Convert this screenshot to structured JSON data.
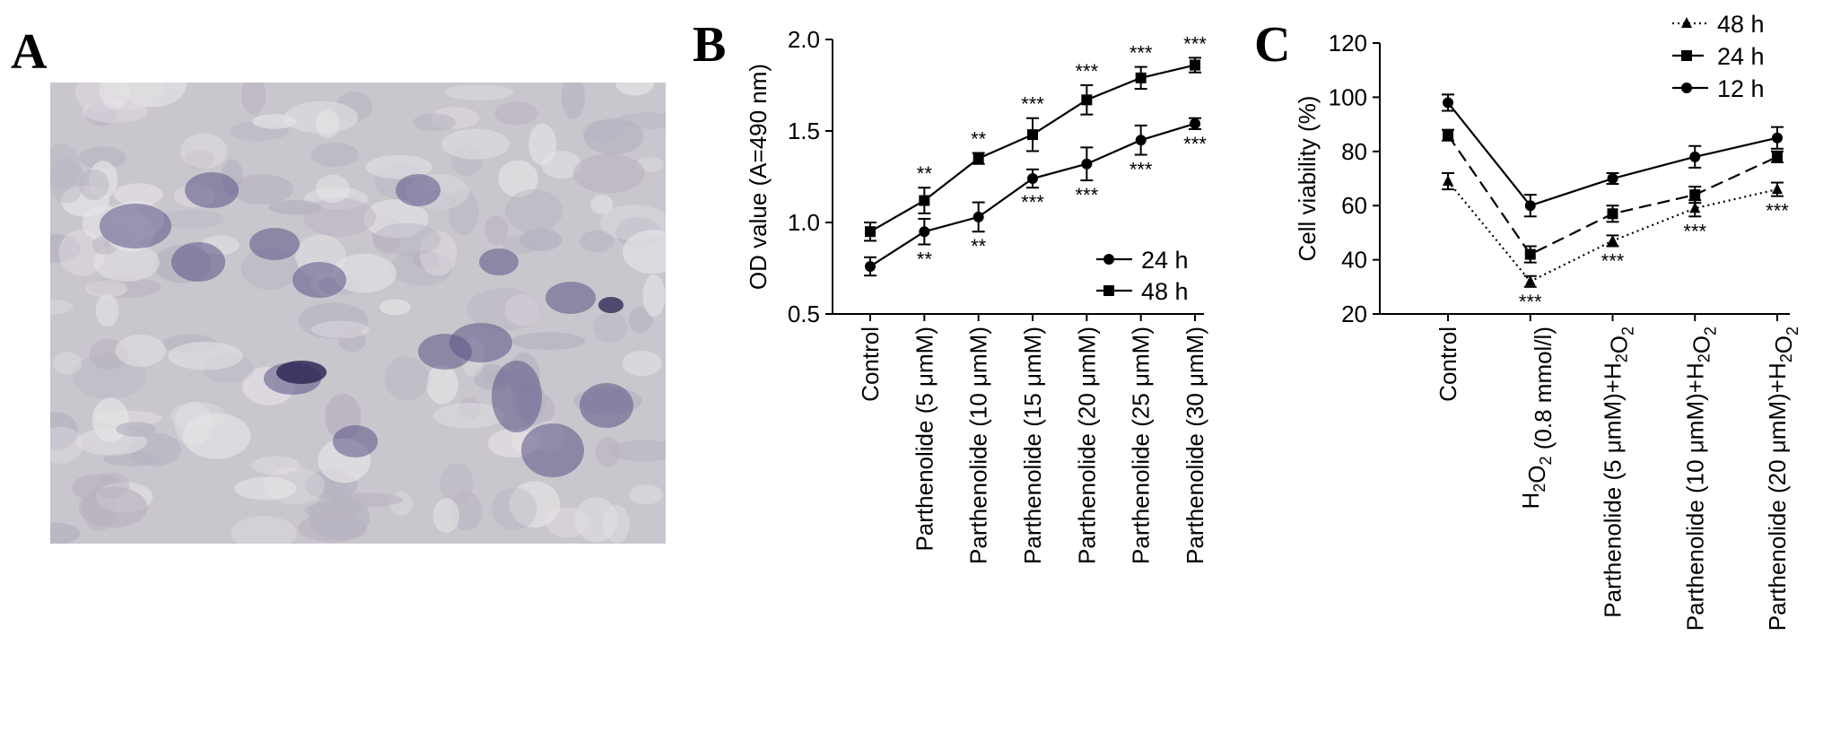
{
  "panels": {
    "a": {
      "letter": "A"
    },
    "b": {
      "letter": "B"
    },
    "c": {
      "letter": "C"
    }
  },
  "chart_data": [
    {
      "type": "line",
      "panel": "B",
      "ylabel": "OD value (A=490 nm)",
      "xlabel": "",
      "ylim": [
        0.5,
        2.0
      ],
      "yticks": [
        "0.5",
        "1.0",
        "1.5",
        "2.0"
      ],
      "categories": [
        "Control",
        "Parthenolide (5 μmM)",
        "Parthenolide (10 μmM)",
        "Parthenolide (15 μmM)",
        "Parthenolide (20 μmM)",
        "Parthenolide (25 μmM)",
        "Parthenolide (30 μmM)"
      ],
      "legend_position": "bottom-right",
      "series": [
        {
          "name": "24 h",
          "marker": "circle",
          "dash": "solid",
          "values": [
            0.76,
            0.95,
            1.03,
            1.24,
            1.32,
            1.45,
            1.54
          ],
          "errors": [
            0.05,
            0.07,
            0.08,
            0.05,
            0.09,
            0.08,
            0.03
          ],
          "sig": [
            "",
            "**",
            "**",
            "***",
            "***",
            "***",
            "***"
          ]
        },
        {
          "name": "48 h",
          "marker": "square",
          "dash": "solid",
          "values": [
            0.95,
            1.12,
            1.35,
            1.48,
            1.67,
            1.79,
            1.86
          ],
          "errors": [
            0.05,
            0.07,
            0.03,
            0.09,
            0.08,
            0.06,
            0.04
          ],
          "sig": [
            "",
            "**",
            "**",
            "***",
            "***",
            "***",
            "***"
          ]
        }
      ]
    },
    {
      "type": "line",
      "panel": "C",
      "ylabel": "Cell viability (%)",
      "xlabel": "",
      "ylim": [
        20,
        120
      ],
      "yticks": [
        "20",
        "40",
        "60",
        "80",
        "100",
        "120"
      ],
      "categories": [
        {
          "parts": [
            {
              "t": "Control"
            }
          ]
        },
        {
          "parts": [
            {
              "t": "H"
            },
            {
              "t": "2",
              "sub": true
            },
            {
              "t": "O"
            },
            {
              "t": "2",
              "sub": true
            },
            {
              "t": " (0.8 mmol/l)"
            }
          ]
        },
        {
          "parts": [
            {
              "t": "Parthenolide (5 μmM)+H"
            },
            {
              "t": "2",
              "sub": true
            },
            {
              "t": "O"
            },
            {
              "t": "2",
              "sub": true
            }
          ]
        },
        {
          "parts": [
            {
              "t": "Parthenolide (10 μmM)+H"
            },
            {
              "t": "2",
              "sub": true
            },
            {
              "t": "O"
            },
            {
              "t": "2",
              "sub": true
            }
          ]
        },
        {
          "parts": [
            {
              "t": "Parthenolide (20 μmM)+H"
            },
            {
              "t": "2",
              "sub": true
            },
            {
              "t": "O"
            },
            {
              "t": "2",
              "sub": true
            }
          ]
        }
      ],
      "legend_position": "top-right",
      "series": [
        {
          "name": "48 h",
          "marker": "triangle",
          "dash": "dotted",
          "values": [
            69,
            32,
            47,
            59,
            66
          ],
          "errors": [
            3,
            2,
            2,
            3,
            2.5
          ]
        },
        {
          "name": "24 h",
          "marker": "square",
          "dash": "dashed",
          "values": [
            86,
            42,
            57,
            64,
            78
          ],
          "errors": [
            2,
            3,
            3,
            3,
            2
          ]
        },
        {
          "name": "12 h",
          "marker": "circle",
          "dash": "solid",
          "values": [
            98,
            60,
            70,
            78,
            85
          ],
          "errors": [
            3,
            4,
            2,
            4,
            4
          ]
        }
      ],
      "sig": [
        "",
        "***",
        "***",
        "***",
        "***"
      ]
    }
  ],
  "colors": {
    "ink": "#000000",
    "micrograph_bg": "#c9c6cd",
    "cell_stain": "#5b5487"
  }
}
